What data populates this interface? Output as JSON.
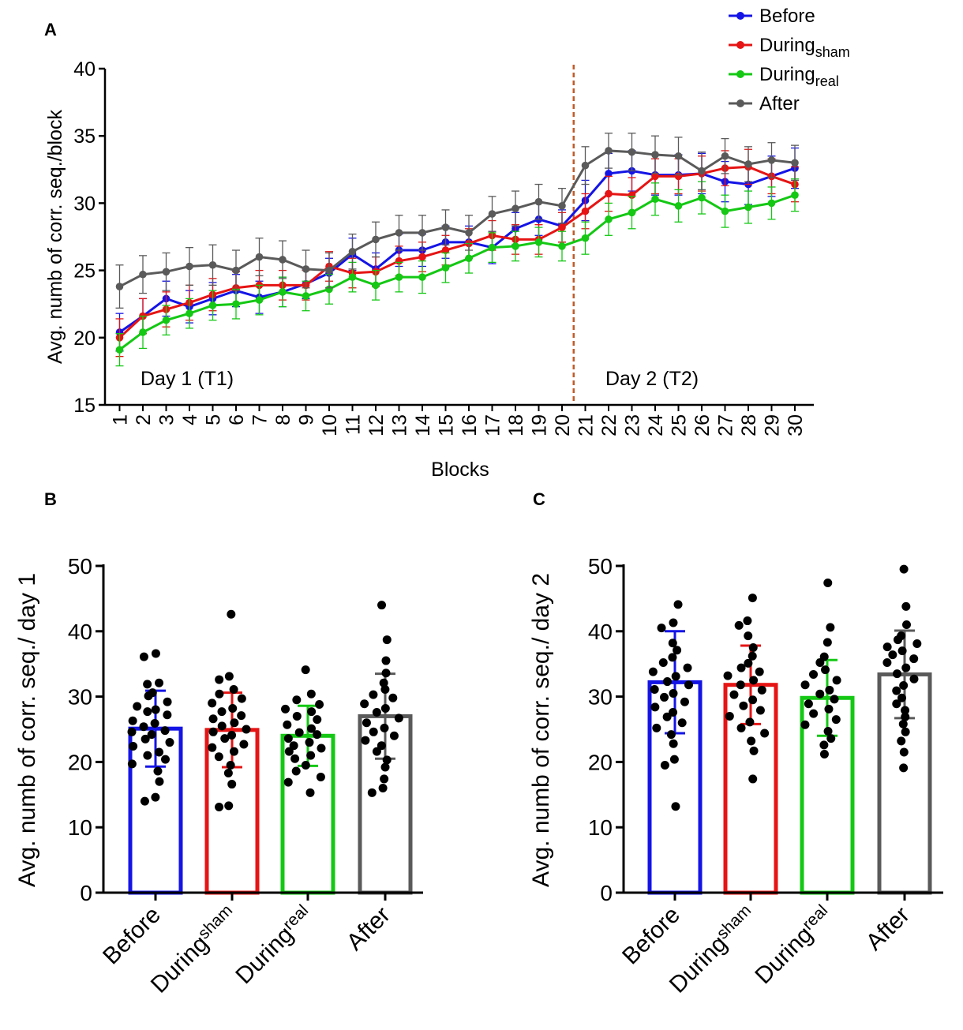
{
  "colors": {
    "Before": "#1414e6",
    "During_sham": "#e61414",
    "During_real": "#14c814",
    "After": "#5a5a5a",
    "divider": "#c05a28",
    "axis": "#000000",
    "dot": "#000000"
  },
  "chart_data": [
    {
      "panel": "A",
      "type": "line",
      "title": "",
      "xlabel": "Blocks",
      "ylabel": "Avg. numb of corr. seq./block",
      "ylim": [
        15,
        40
      ],
      "yticks": [
        15,
        20,
        25,
        30,
        35,
        40
      ],
      "x": [
        1,
        2,
        3,
        4,
        5,
        6,
        7,
        8,
        9,
        10,
        11,
        12,
        13,
        14,
        15,
        16,
        17,
        18,
        19,
        20,
        21,
        22,
        23,
        24,
        25,
        26,
        27,
        28,
        29,
        30
      ],
      "x_tick_labels": [
        "1",
        "2",
        "3",
        "4",
        "5",
        "6",
        "7",
        "8",
        "9",
        "10",
        "11",
        "12",
        "13",
        "14",
        "15",
        "16",
        "17",
        "18",
        "19",
        "20",
        "21",
        "22",
        "23",
        "24",
        "25",
        "26",
        "27",
        "28",
        "29",
        "30"
      ],
      "divider_between_blocks": [
        20,
        21
      ],
      "annotations": [
        "Day 1 (T1)",
        "Day 2 (T2)"
      ],
      "legend_position": "top-right",
      "series": [
        {
          "name": "Before",
          "name_base": "Before",
          "name_sub": "",
          "color_key": "Before",
          "values": [
            20.4,
            21.6,
            22.9,
            22.3,
            22.9,
            23.5,
            23.0,
            23.4,
            24.0,
            24.8,
            26.2,
            25.1,
            26.5,
            26.5,
            27.1,
            27.1,
            26.7,
            28.1,
            28.8,
            28.3,
            30.2,
            32.2,
            32.4,
            32.1,
            32.1,
            32.2,
            31.6,
            31.4,
            32.0,
            32.6
          ],
          "errors": [
            1.4,
            1.3,
            1.3,
            1.2,
            1.2,
            1.2,
            1.2,
            1.1,
            1.1,
            1.1,
            1.2,
            1.2,
            1.2,
            1.2,
            1.2,
            1.2,
            1.2,
            1.2,
            1.2,
            1.2,
            1.5,
            1.5,
            1.5,
            1.5,
            1.5,
            1.5,
            1.5,
            1.5,
            1.5,
            1.5
          ]
        },
        {
          "name": "Duringsham",
          "name_base": "During",
          "name_sub": "sham",
          "color_key": "During_sham",
          "values": [
            20.0,
            21.6,
            22.1,
            22.6,
            23.2,
            23.7,
            23.9,
            23.9,
            23.9,
            25.3,
            24.8,
            24.9,
            25.7,
            26.0,
            26.5,
            27.0,
            27.6,
            27.3,
            27.3,
            28.2,
            29.4,
            30.7,
            30.6,
            32.0,
            32.0,
            32.2,
            32.6,
            32.7,
            32.0,
            31.4
          ],
          "errors": [
            1.4,
            1.3,
            1.3,
            1.3,
            1.2,
            1.2,
            1.1,
            1.1,
            1.1,
            1.1,
            1.1,
            1.1,
            1.1,
            1.1,
            1.1,
            1.1,
            1.1,
            1.1,
            1.1,
            1.1,
            1.3,
            1.3,
            1.3,
            1.3,
            1.3,
            1.3,
            1.3,
            1.3,
            1.3,
            1.3
          ]
        },
        {
          "name": "Duringreal",
          "name_base": "During",
          "name_sub": "real",
          "color_key": "During_real",
          "values": [
            19.1,
            20.4,
            21.3,
            21.8,
            22.4,
            22.5,
            22.8,
            23.4,
            23.1,
            23.6,
            24.5,
            23.9,
            24.5,
            24.5,
            25.2,
            25.9,
            26.7,
            26.8,
            27.1,
            26.8,
            27.4,
            28.8,
            29.3,
            30.3,
            29.8,
            30.4,
            29.4,
            29.7,
            30.0,
            30.6
          ],
          "errors": [
            1.2,
            1.2,
            1.1,
            1.1,
            1.1,
            1.1,
            1.1,
            1.1,
            1.1,
            1.1,
            1.1,
            1.1,
            1.1,
            1.2,
            1.1,
            1.1,
            1.1,
            1.1,
            1.1,
            1.1,
            1.2,
            1.2,
            1.2,
            1.2,
            1.2,
            1.2,
            1.2,
            1.2,
            1.2,
            1.2
          ]
        },
        {
          "name": "After",
          "name_base": "After",
          "name_sub": "",
          "color_key": "After",
          "values": [
            23.8,
            24.7,
            24.9,
            25.3,
            25.4,
            25.0,
            26.0,
            25.8,
            25.1,
            25.0,
            26.4,
            27.3,
            27.8,
            27.8,
            28.2,
            27.8,
            29.2,
            29.6,
            30.1,
            29.8,
            32.8,
            33.9,
            33.8,
            33.6,
            33.5,
            32.4,
            33.5,
            32.9,
            33.2,
            33.0
          ],
          "errors": [
            1.6,
            1.4,
            1.4,
            1.4,
            1.5,
            1.5,
            1.4,
            1.4,
            1.4,
            1.3,
            1.3,
            1.3,
            1.3,
            1.3,
            1.3,
            1.3,
            1.3,
            1.3,
            1.3,
            1.3,
            1.4,
            1.3,
            1.4,
            1.4,
            1.4,
            1.4,
            1.3,
            1.3,
            1.3,
            1.3
          ]
        }
      ]
    },
    {
      "panel": "B",
      "type": "bar",
      "title": "",
      "xlabel": "",
      "ylabel": "Avg. numb of corr. seq./ day 1",
      "ylim": [
        0,
        50
      ],
      "yticks": [
        0,
        10,
        20,
        30,
        40,
        50
      ],
      "categories": [
        {
          "base": "Before",
          "sub": "",
          "color_key": "Before"
        },
        {
          "base": "During",
          "sub": "sham",
          "color_key": "During_sham"
        },
        {
          "base": "During",
          "sub": "real",
          "color_key": "During_real"
        },
        {
          "base": "After",
          "sub": "",
          "color_key": "After"
        }
      ],
      "means": [
        25.1,
        24.9,
        24.0,
        27.0
      ],
      "sd": [
        5.8,
        5.7,
        4.6,
        6.5
      ],
      "points": [
        [
          36.6,
          36.1,
          32.1,
          31.9,
          30.6,
          30.1,
          29.2,
          28.5,
          28.0,
          27.7,
          27.2,
          26.3,
          25.9,
          25.4,
          24.8,
          24.6,
          24.2,
          23.5,
          23.0,
          22.4,
          21.5,
          21.0,
          20.4,
          19.7,
          18.6,
          17.0,
          14.6,
          14.0
        ],
        [
          42.6,
          33.1,
          32.6,
          31.1,
          30.4,
          29.7,
          29.0,
          28.2,
          27.7,
          27.1,
          26.6,
          26.0,
          25.5,
          25.0,
          24.6,
          24.1,
          23.6,
          22.7,
          22.2,
          21.6,
          20.8,
          19.5,
          18.3,
          16.6,
          13.3,
          13.1
        ],
        [
          34.1,
          30.4,
          29.5,
          28.8,
          28.1,
          27.7,
          27.0,
          26.5,
          25.7,
          25.1,
          24.5,
          24.2,
          23.6,
          23.0,
          22.5,
          22.1,
          21.6,
          21.0,
          20.5,
          19.5,
          18.6,
          17.7,
          16.9,
          15.3
        ],
        [
          44.0,
          38.7,
          35.5,
          33.6,
          32.1,
          31.1,
          30.3,
          29.8,
          28.9,
          28.2,
          27.6,
          26.7,
          26.0,
          25.2,
          24.6,
          24.0,
          23.3,
          22.5,
          21.6,
          20.3,
          19.2,
          17.4,
          16.0,
          15.3
        ]
      ]
    },
    {
      "panel": "C",
      "type": "bar",
      "title": "",
      "xlabel": "",
      "ylabel": "Avg. numb of corr. seq./ day 2",
      "ylim": [
        0,
        50
      ],
      "yticks": [
        0,
        10,
        20,
        30,
        40,
        50
      ],
      "categories": [
        {
          "base": "Before",
          "sub": "",
          "color_key": "Before"
        },
        {
          "base": "During",
          "sub": "sham",
          "color_key": "During_sham"
        },
        {
          "base": "During",
          "sub": "real",
          "color_key": "During_real"
        },
        {
          "base": "After",
          "sub": "",
          "color_key": "After"
        }
      ],
      "means": [
        32.2,
        31.8,
        29.8,
        33.4
      ],
      "sd": [
        7.8,
        6.0,
        5.8,
        6.7
      ],
      "points": [
        [
          44.1,
          41.3,
          40.5,
          38.2,
          37.1,
          36.0,
          35.2,
          34.4,
          33.8,
          33.1,
          32.3,
          31.8,
          31.1,
          30.5,
          29.9,
          29.2,
          28.4,
          27.6,
          26.9,
          26.0,
          25.2,
          24.2,
          22.8,
          20.4,
          19.5,
          13.2
        ],
        [
          45.1,
          41.6,
          40.9,
          39.3,
          37.5,
          36.2,
          35.1,
          34.4,
          33.8,
          33.2,
          32.5,
          31.8,
          31.0,
          30.3,
          29.5,
          28.6,
          27.9,
          27.0,
          26.1,
          25.2,
          24.4,
          23.2,
          21.7,
          17.4
        ],
        [
          47.4,
          40.6,
          38.3,
          36.1,
          35.2,
          34.1,
          33.4,
          32.5,
          31.8,
          31.0,
          30.4,
          29.6,
          28.9,
          28.1,
          27.4,
          26.5,
          25.7,
          24.7,
          23.6,
          22.6,
          21.2
        ],
        [
          49.5,
          43.8,
          41.0,
          39.3,
          38.7,
          38.1,
          37.6,
          37.0,
          36.4,
          35.8,
          35.2,
          34.4,
          33.5,
          32.7,
          31.7,
          30.9,
          29.8,
          28.9,
          27.9,
          26.9,
          25.8,
          24.6,
          23.2,
          21.5,
          19.1
        ]
      ]
    }
  ],
  "panel_labels": {
    "A": "A",
    "B": "B",
    "C": "C"
  }
}
